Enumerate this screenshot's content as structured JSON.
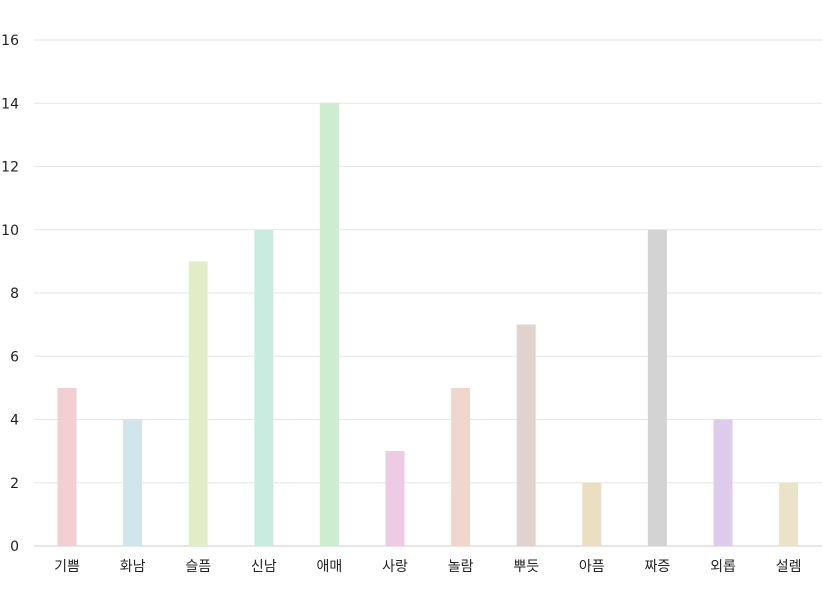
{
  "chart_data": {
    "type": "bar",
    "categories": [
      "기쁨",
      "화남",
      "슬픔",
      "신남",
      "애매",
      "사랑",
      "놀람",
      "뿌듯",
      "아픔",
      "짜증",
      "외롭",
      "설렘"
    ],
    "values": [
      5,
      4,
      9,
      10,
      14,
      3,
      5,
      7,
      2,
      10,
      4,
      2
    ],
    "colors": [
      "#f2cfd2",
      "#d0e6ec",
      "#e2edc8",
      "#c9ebe0",
      "#cdecd0",
      "#edcbe4",
      "#f0d7cc",
      "#e0d2cc",
      "#ecdec0",
      "#d3d3d3",
      "#ddcbed",
      "#eae3c8"
    ],
    "ylim": [
      0,
      16
    ],
    "yticks": [
      "0",
      "2",
      "4",
      "6",
      "8",
      "10",
      "12",
      "14",
      "16"
    ],
    "grid": true,
    "gridColor": "#e6e6e6",
    "axisColor": "#cccccc",
    "title": "",
    "xlabel": "",
    "ylabel": ""
  }
}
